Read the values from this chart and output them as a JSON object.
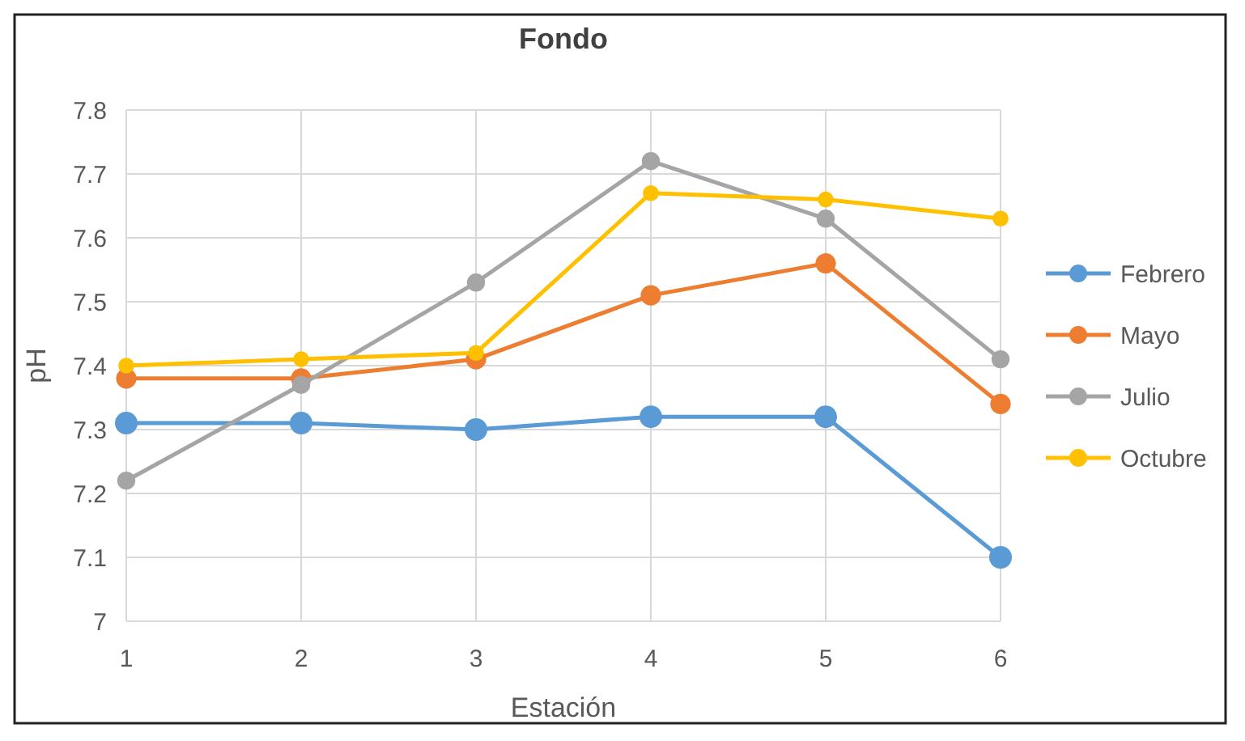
{
  "chart_data": {
    "type": "line",
    "title": "Fondo",
    "xlabel": "Estación",
    "ylabel": "pH",
    "x": [
      1,
      2,
      3,
      4,
      5,
      6
    ],
    "xlim": [
      1,
      6
    ],
    "xticks": [
      1,
      2,
      3,
      4,
      5,
      6
    ],
    "ylim": [
      7,
      7.8
    ],
    "yticks": [
      7,
      7.1,
      7.2,
      7.3,
      7.4,
      7.5,
      7.6,
      7.7,
      7.8
    ],
    "grid": true,
    "legend": "right",
    "marker": "circle",
    "line_style": "solid",
    "series": [
      {
        "name": "Febrero",
        "color": "#5b9bd5",
        "values": [
          7.31,
          7.31,
          7.3,
          7.32,
          7.32,
          7.1
        ]
      },
      {
        "name": "Mayo",
        "color": "#ed7d31",
        "values": [
          7.38,
          7.38,
          7.41,
          7.51,
          7.56,
          7.34
        ]
      },
      {
        "name": "Julio",
        "color": "#a5a5a5",
        "values": [
          7.22,
          7.37,
          7.53,
          7.72,
          7.63,
          7.41
        ]
      },
      {
        "name": "Octubre",
        "color": "#ffc000",
        "values": [
          7.4,
          7.41,
          7.42,
          7.67,
          7.66,
          7.63
        ]
      }
    ]
  }
}
